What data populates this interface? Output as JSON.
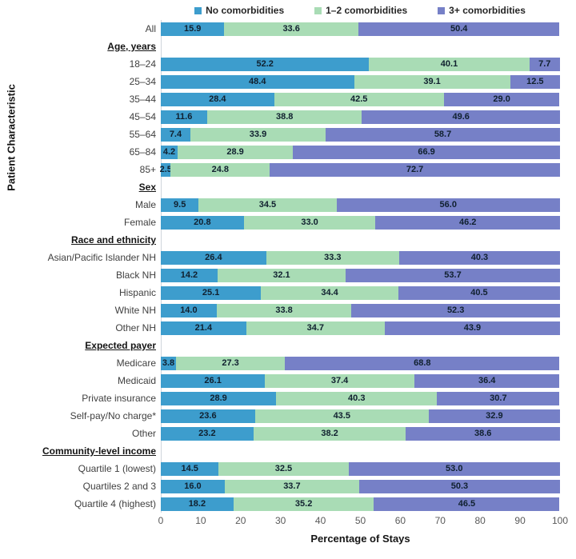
{
  "colors": {
    "no_comorbidities": "#3D9DCD",
    "one_two_comorbidities": "#A9DCB5",
    "three_plus_comorbidities": "#7680C7",
    "axis_line": "#cfd5db",
    "tick_text": "#595959",
    "value_text": "#10202f"
  },
  "chart_data": {
    "type": "bar",
    "orientation": "horizontal",
    "stacked": true,
    "legend_position": "top",
    "grid": false,
    "series": [
      {
        "name": "No comorbidities",
        "color": "#3D9DCD"
      },
      {
        "name": "1–2 comorbidities",
        "color": "#A9DCB5"
      },
      {
        "name": "3+ comorbidities",
        "color": "#7680C7"
      }
    ],
    "x_axis": {
      "label": "Percentage of Stays",
      "range": [
        0,
        100
      ],
      "ticks": [
        "0",
        "10",
        "20",
        "30",
        "40",
        "50",
        "60",
        "70",
        "80",
        "90",
        "100"
      ]
    },
    "y_axis": {
      "label": "Patient Characteristic"
    },
    "rows": [
      {
        "type": "bar",
        "label": "All",
        "values": [
          15.9,
          33.6,
          50.4
        ],
        "labels": [
          "15.9",
          "33.6",
          "50.4"
        ]
      },
      {
        "type": "section",
        "label": "Age, years"
      },
      {
        "type": "bar",
        "label": "18–24",
        "values": [
          52.2,
          40.1,
          7.7
        ],
        "labels": [
          "52.2",
          "40.1",
          "7.7"
        ]
      },
      {
        "type": "bar",
        "label": "25–34",
        "values": [
          48.4,
          39.1,
          12.5
        ],
        "labels": [
          "48.4",
          "39.1",
          "12.5"
        ]
      },
      {
        "type": "bar",
        "label": "35–44",
        "values": [
          28.4,
          42.5,
          29.0
        ],
        "labels": [
          "28.4",
          "42.5",
          "29.0"
        ]
      },
      {
        "type": "bar",
        "label": "45–54",
        "values": [
          11.6,
          38.8,
          49.6
        ],
        "labels": [
          "11.6",
          "38.8",
          "49.6"
        ]
      },
      {
        "type": "bar",
        "label": "55–64",
        "values": [
          7.4,
          33.9,
          58.7
        ],
        "labels": [
          "7.4",
          "33.9",
          "58.7"
        ]
      },
      {
        "type": "bar",
        "label": "65–84",
        "values": [
          4.2,
          28.9,
          66.9
        ],
        "labels": [
          "4.2",
          "28.9",
          "66.9"
        ]
      },
      {
        "type": "bar",
        "label": "85+",
        "values": [
          2.5,
          24.8,
          72.7
        ],
        "labels": [
          "2.5",
          "24.8",
          "72.7"
        ]
      },
      {
        "type": "section",
        "label": "Sex"
      },
      {
        "type": "bar",
        "label": "Male",
        "values": [
          9.5,
          34.5,
          56.0
        ],
        "labels": [
          "9.5",
          "34.5",
          "56.0"
        ]
      },
      {
        "type": "bar",
        "label": "Female",
        "values": [
          20.8,
          33.0,
          46.2
        ],
        "labels": [
          "20.8",
          "33.0",
          "46.2"
        ]
      },
      {
        "type": "section",
        "label": "Race and ethnicity"
      },
      {
        "type": "bar",
        "label": "Asian/Pacific Islander NH",
        "values": [
          26.4,
          33.3,
          40.3
        ],
        "labels": [
          "26.4",
          "33.3",
          "40.3"
        ]
      },
      {
        "type": "bar",
        "label": "Black NH",
        "values": [
          14.2,
          32.1,
          53.7
        ],
        "labels": [
          "14.2",
          "32.1",
          "53.7"
        ]
      },
      {
        "type": "bar",
        "label": "Hispanic",
        "values": [
          25.1,
          34.4,
          40.5
        ],
        "labels": [
          "25.1",
          "34.4",
          "40.5"
        ]
      },
      {
        "type": "bar",
        "label": "White NH",
        "values": [
          14.0,
          33.8,
          52.3
        ],
        "labels": [
          "14.0",
          "33.8",
          "52.3"
        ]
      },
      {
        "type": "bar",
        "label": "Other NH",
        "values": [
          21.4,
          34.7,
          43.9
        ],
        "labels": [
          "21.4",
          "34.7",
          "43.9"
        ]
      },
      {
        "type": "section",
        "label": "Expected payer"
      },
      {
        "type": "bar",
        "label": "Medicare",
        "values": [
          3.8,
          27.3,
          68.8
        ],
        "labels": [
          "3.8",
          "27.3",
          "68.8"
        ]
      },
      {
        "type": "bar",
        "label": "Medicaid",
        "values": [
          26.1,
          37.4,
          36.4
        ],
        "labels": [
          "26.1",
          "37.4",
          "36.4"
        ]
      },
      {
        "type": "bar",
        "label": "Private insurance",
        "values": [
          28.9,
          40.3,
          30.7
        ],
        "labels": [
          "28.9",
          "40.3",
          "30.7"
        ]
      },
      {
        "type": "bar",
        "label": "Self-pay/No charge*",
        "values": [
          23.6,
          43.5,
          32.9
        ],
        "labels": [
          "23.6",
          "43.5",
          "32.9"
        ]
      },
      {
        "type": "bar",
        "label": "Other",
        "values": [
          23.2,
          38.2,
          38.6
        ],
        "labels": [
          "23.2",
          "38.2",
          "38.6"
        ]
      },
      {
        "type": "section",
        "label": "Community-level income"
      },
      {
        "type": "bar",
        "label": "Quartile 1 (lowest)",
        "values": [
          14.5,
          32.5,
          53.0
        ],
        "labels": [
          "14.5",
          "32.5",
          "53.0"
        ]
      },
      {
        "type": "bar",
        "label": "Quartiles 2 and 3",
        "values": [
          16.0,
          33.7,
          50.3
        ],
        "labels": [
          "16.0",
          "33.7",
          "50.3"
        ]
      },
      {
        "type": "bar",
        "label": "Quartile 4 (highest)",
        "values": [
          18.2,
          35.2,
          46.5
        ],
        "labels": [
          "18.2",
          "35.2",
          "46.5"
        ]
      }
    ]
  }
}
